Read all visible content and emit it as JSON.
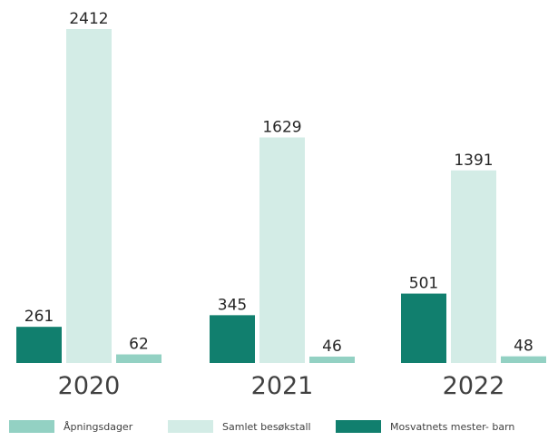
{
  "chart_data": {
    "type": "bar",
    "title": "",
    "xlabel": "",
    "ylabel": "",
    "categories": [
      "2020",
      "2021",
      "2022"
    ],
    "series": [
      {
        "name": "Mosvatnets mester- barn",
        "values": [
          261,
          345,
          501
        ],
        "color": "#117F6E"
      },
      {
        "name": "Samlet besøkstall",
        "values": [
          2412,
          1629,
          1391
        ],
        "color": "#D3ECE6"
      },
      {
        "name": "Åpningsdager",
        "values": [
          62,
          46,
          48
        ],
        "color": "#93D1C3"
      }
    ],
    "legend_order": [
      "Åpningsdager",
      "Samlet besøkstall",
      "Mosvatnets mester- barn"
    ],
    "legend_position": "bottom",
    "grid": false
  }
}
